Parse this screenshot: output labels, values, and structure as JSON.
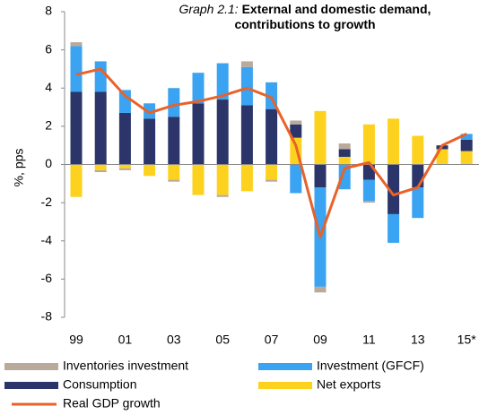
{
  "chart_data": {
    "type": "bar",
    "stacked": true,
    "title_prefix": "Graph 2.1:",
    "title": "External and domestic demand, contributions to growth",
    "y_label": "%, pps",
    "categories": [
      "99",
      null,
      "01",
      null,
      "03",
      null,
      "05",
      null,
      "07",
      null,
      "09",
      null,
      "11",
      null,
      "13",
      null,
      "15*"
    ],
    "ylim": [
      -8,
      8
    ],
    "yticks": [
      -8,
      -6,
      -4,
      -2,
      0,
      2,
      4,
      6,
      8
    ],
    "series": [
      {
        "name": "Net exports",
        "color": "#fdd21e",
        "values": [
          -1.7,
          -0.3,
          -0.2,
          -0.6,
          -0.8,
          -1.6,
          -1.6,
          -1.4,
          -0.8,
          1.4,
          2.8,
          0.4,
          2.1,
          2.4,
          1.5,
          0.8,
          0.7
        ]
      },
      {
        "name": "Consumption",
        "color": "#2b3569",
        "values": [
          3.8,
          3.8,
          2.7,
          2.4,
          2.5,
          3.2,
          3.4,
          3.1,
          2.9,
          0.7,
          -1.2,
          0.4,
          -0.8,
          -2.6,
          -1.2,
          0.2,
          0.6
        ]
      },
      {
        "name": "Investment (GFCF)",
        "color": "#3aa3f2",
        "values": [
          2.4,
          1.6,
          1.2,
          0.8,
          1.5,
          1.6,
          1.9,
          2.0,
          1.4,
          -1.5,
          -5.2,
          -1.3,
          -1.1,
          -1.5,
          -1.6,
          0,
          0.3
        ]
      },
      {
        "name": "Inventories investment",
        "color": "#b9aa9c",
        "values": [
          0.2,
          -0.1,
          -0.1,
          0,
          -0.1,
          0,
          -0.1,
          0.3,
          -0.1,
          0.2,
          -0.3,
          0.3,
          -0.1,
          0,
          0,
          0,
          0
        ]
      },
      {
        "name": "Real GDP growth",
        "color": "#e8622a",
        "type": "line",
        "values": [
          4.7,
          5.0,
          3.6,
          2.7,
          3.1,
          3.3,
          3.6,
          4.0,
          3.5,
          1.0,
          -3.8,
          -0.2,
          0.1,
          -1.6,
          -1.2,
          1.0,
          1.6
        ]
      }
    ]
  }
}
